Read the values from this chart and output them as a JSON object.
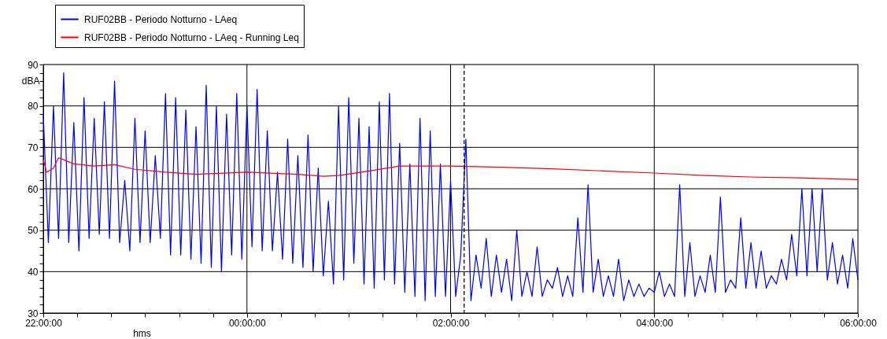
{
  "chart_data": {
    "type": "line",
    "xlabel": "hms",
    "ylabel": "dBA",
    "xlim": [
      "2000-01-01T22:00",
      "2000-01-02T06:00"
    ],
    "xticks": [
      {
        "value": "2000-01-01T22:00",
        "label": "22:00:00"
      },
      {
        "value": "2000-01-01T22:20",
        "label": null
      },
      {
        "value": "2000-01-01T22:40",
        "label": null
      },
      {
        "value": "2000-01-01T23:00",
        "label": null
      },
      {
        "value": "2000-01-01T23:20",
        "label": null
      },
      {
        "value": "2000-01-01T23:40",
        "label": null
      },
      {
        "value": "2000-01-02T00:00",
        "label": "00:00:00"
      },
      {
        "value": "2000-01-02T00:20",
        "label": null
      },
      {
        "value": "2000-01-02T00:40",
        "label": null
      },
      {
        "value": "2000-01-02T01:00",
        "label": null
      },
      {
        "value": "2000-01-02T01:20",
        "label": null
      },
      {
        "value": "2000-01-02T01:40",
        "label": null
      },
      {
        "value": "2000-01-02T02:00",
        "label": "02:00:00"
      },
      {
        "value": "2000-01-02T02:20",
        "label": null
      },
      {
        "value": "2000-01-02T02:40",
        "label": null
      },
      {
        "value": "2000-01-02T03:00",
        "label": null
      },
      {
        "value": "2000-01-02T03:20",
        "label": null
      },
      {
        "value": "2000-01-02T03:40",
        "label": null
      },
      {
        "value": "2000-01-02T04:00",
        "label": "04:00:00"
      },
      {
        "value": "2000-01-02T04:20",
        "label": null
      },
      {
        "value": "2000-01-02T04:40",
        "label": null
      },
      {
        "value": "2000-01-02T05:00",
        "label": null
      },
      {
        "value": "2000-01-02T05:20",
        "label": null
      },
      {
        "value": "2000-01-02T05:40",
        "label": null
      },
      {
        "value": "2000-01-02T06:00",
        "label": "06:00:00"
      }
    ],
    "ylim": [
      30,
      90
    ],
    "yticks": [
      30,
      {
        "value": 32,
        "label": null
      },
      {
        "value": 34,
        "label": null
      },
      {
        "value": 36,
        "label": null
      },
      {
        "value": 38,
        "label": null
      },
      40,
      {
        "value": 42,
        "label": null
      },
      {
        "value": 44,
        "label": null
      },
      {
        "value": 46,
        "label": null
      },
      {
        "value": 48,
        "label": null
      },
      50,
      {
        "value": 52,
        "label": null
      },
      {
        "value": 54,
        "label": null
      },
      {
        "value": 56,
        "label": null
      },
      {
        "value": 58,
        "label": null
      },
      60,
      {
        "value": 62,
        "label": null
      },
      {
        "value": 64,
        "label": null
      },
      {
        "value": 66,
        "label": null
      },
      {
        "value": 68,
        "label": null
      },
      70,
      {
        "value": 72,
        "label": null
      },
      {
        "value": 74,
        "label": null
      },
      {
        "value": 76,
        "label": null
      },
      {
        "value": 78,
        "label": null
      },
      80,
      {
        "value": 82,
        "label": null
      },
      {
        "value": 84,
        "label": null
      },
      {
        "value": 86,
        "label": null
      },
      {
        "value": 88,
        "label": null
      },
      90
    ],
    "grid": true,
    "legend": "top",
    "line_style": "solid",
    "marker": "none",
    "ref_lines": [
      {
        "axis": "x",
        "value": "2000-01-02T02:08",
        "color": "#000000",
        "line_style": "dashed"
      }
    ],
    "series": [
      {
        "name": "RUF02BB - Periodo Notturno - LAeq",
        "color": "#0000ff",
        "x": [
          "2000-01-01T22:00",
          "2000-01-01T22:03",
          "2000-01-01T22:06",
          "2000-01-01T22:09",
          "2000-01-01T22:12",
          "2000-01-01T22:15",
          "2000-01-01T22:18",
          "2000-01-01T22:21",
          "2000-01-01T22:24",
          "2000-01-01T22:27",
          "2000-01-01T22:30",
          "2000-01-01T22:33",
          "2000-01-01T22:36",
          "2000-01-01T22:39",
          "2000-01-01T22:42",
          "2000-01-01T22:45",
          "2000-01-01T22:48",
          "2000-01-01T22:51",
          "2000-01-01T22:54",
          "2000-01-01T22:57",
          "2000-01-01T23:00",
          "2000-01-01T23:03",
          "2000-01-01T23:06",
          "2000-01-01T23:09",
          "2000-01-01T23:12",
          "2000-01-01T23:15",
          "2000-01-01T23:18",
          "2000-01-01T23:21",
          "2000-01-01T23:24",
          "2000-01-01T23:27",
          "2000-01-01T23:30",
          "2000-01-01T23:33",
          "2000-01-01T23:36",
          "2000-01-01T23:39",
          "2000-01-01T23:42",
          "2000-01-01T23:45",
          "2000-01-01T23:48",
          "2000-01-01T23:51",
          "2000-01-01T23:54",
          "2000-01-01T23:57",
          "2000-01-02T00:00",
          "2000-01-02T00:03",
          "2000-01-02T00:06",
          "2000-01-02T00:09",
          "2000-01-02T00:12",
          "2000-01-02T00:15",
          "2000-01-02T00:18",
          "2000-01-02T00:21",
          "2000-01-02T00:24",
          "2000-01-02T00:27",
          "2000-01-02T00:30",
          "2000-01-02T00:33",
          "2000-01-02T00:36",
          "2000-01-02T00:39",
          "2000-01-02T00:42",
          "2000-01-02T00:45",
          "2000-01-02T00:48",
          "2000-01-02T00:51",
          "2000-01-02T00:54",
          "2000-01-02T00:57",
          "2000-01-02T01:00",
          "2000-01-02T01:03",
          "2000-01-02T01:06",
          "2000-01-02T01:09",
          "2000-01-02T01:12",
          "2000-01-02T01:15",
          "2000-01-02T01:18",
          "2000-01-02T01:21",
          "2000-01-02T01:24",
          "2000-01-02T01:27",
          "2000-01-02T01:30",
          "2000-01-02T01:33",
          "2000-01-02T01:36",
          "2000-01-02T01:39",
          "2000-01-02T01:42",
          "2000-01-02T01:45",
          "2000-01-02T01:48",
          "2000-01-02T01:51",
          "2000-01-02T01:54",
          "2000-01-02T01:57",
          "2000-01-02T02:00",
          "2000-01-02T02:03",
          "2000-01-02T02:06",
          "2000-01-02T02:09",
          "2000-01-02T02:12",
          "2000-01-02T02:15",
          "2000-01-02T02:18",
          "2000-01-02T02:21",
          "2000-01-02T02:24",
          "2000-01-02T02:27",
          "2000-01-02T02:30",
          "2000-01-02T02:33",
          "2000-01-02T02:36",
          "2000-01-02T02:39",
          "2000-01-02T02:42",
          "2000-01-02T02:45",
          "2000-01-02T02:48",
          "2000-01-02T02:51",
          "2000-01-02T02:54",
          "2000-01-02T02:57",
          "2000-01-02T03:00",
          "2000-01-02T03:03",
          "2000-01-02T03:06",
          "2000-01-02T03:09",
          "2000-01-02T03:12",
          "2000-01-02T03:15",
          "2000-01-02T03:18",
          "2000-01-02T03:21",
          "2000-01-02T03:24",
          "2000-01-02T03:27",
          "2000-01-02T03:30",
          "2000-01-02T03:33",
          "2000-01-02T03:36",
          "2000-01-02T03:39",
          "2000-01-02T03:42",
          "2000-01-02T03:45",
          "2000-01-02T03:48",
          "2000-01-02T03:51",
          "2000-01-02T03:54",
          "2000-01-02T03:57",
          "2000-01-02T04:00",
          "2000-01-02T04:03",
          "2000-01-02T04:06",
          "2000-01-02T04:09",
          "2000-01-02T04:12",
          "2000-01-02T04:15",
          "2000-01-02T04:18",
          "2000-01-02T04:21",
          "2000-01-02T04:24",
          "2000-01-02T04:27",
          "2000-01-02T04:30",
          "2000-01-02T04:33",
          "2000-01-02T04:36",
          "2000-01-02T04:39",
          "2000-01-02T04:42",
          "2000-01-02T04:45",
          "2000-01-02T04:48",
          "2000-01-02T04:51",
          "2000-01-02T04:54",
          "2000-01-02T04:57",
          "2000-01-02T05:00",
          "2000-01-02T05:03",
          "2000-01-02T05:06",
          "2000-01-02T05:09",
          "2000-01-02T05:12",
          "2000-01-02T05:15",
          "2000-01-02T05:18",
          "2000-01-02T05:21",
          "2000-01-02T05:24",
          "2000-01-02T05:27",
          "2000-01-02T05:30",
          "2000-01-02T05:33",
          "2000-01-02T05:36",
          "2000-01-02T05:39",
          "2000-01-02T05:42",
          "2000-01-02T05:45",
          "2000-01-02T05:48",
          "2000-01-02T05:51",
          "2000-01-02T05:54",
          "2000-01-02T05:57",
          "2000-01-02T06:00"
        ],
        "values": [
          78,
          47,
          80,
          48,
          88,
          47,
          76,
          45,
          82,
          48,
          77,
          49,
          81,
          48,
          86,
          47,
          62,
          45,
          77,
          47,
          74,
          47,
          68,
          48,
          83,
          44,
          82,
          44,
          79,
          43,
          75,
          42,
          85,
          41,
          80,
          40,
          78,
          44,
          83,
          43,
          80,
          46,
          84,
          45,
          74,
          45,
          64,
          43,
          72,
          42,
          68,
          41,
          73,
          40,
          65,
          39,
          57,
          37,
          80,
          38,
          82,
          42,
          77,
          37,
          75,
          36,
          81,
          38,
          83,
          37,
          71,
          35,
          66,
          34,
          77,
          33,
          74,
          34,
          66,
          34,
          62,
          34,
          44,
          72,
          33,
          44,
          36,
          48,
          34,
          44,
          35,
          43,
          33,
          50,
          34,
          40,
          34,
          46,
          34,
          38,
          36,
          41,
          34,
          39,
          34,
          53,
          35,
          61,
          35,
          43,
          34,
          39,
          34,
          43,
          33,
          38,
          34,
          37,
          34,
          36,
          35,
          40,
          34,
          37,
          34,
          61,
          34,
          47,
          34,
          39,
          35,
          44,
          35,
          58,
          35,
          38,
          36,
          53,
          36,
          47,
          36,
          45,
          36,
          39,
          37,
          43,
          38,
          49,
          39,
          60,
          39,
          60,
          40,
          60,
          38,
          47,
          37,
          44,
          36,
          48,
          38
        ]
      },
      {
        "name": "RUF02BB - Periodo Notturno - LAeq - Running Leq",
        "color": "#ff0000",
        "x": [
          "2000-01-01T22:00",
          "2000-01-01T22:02",
          "2000-01-01T22:06",
          "2000-01-01T22:09",
          "2000-01-01T22:18",
          "2000-01-01T22:30",
          "2000-01-01T22:42",
          "2000-01-01T22:54",
          "2000-01-01T23:12",
          "2000-01-01T23:30",
          "2000-01-02T00:00",
          "2000-01-02T00:30",
          "2000-01-02T00:45",
          "2000-01-02T00:54",
          "2000-01-02T01:12",
          "2000-01-02T01:30",
          "2000-01-02T02:00",
          "2000-01-02T02:30",
          "2000-01-02T03:00",
          "2000-01-02T03:30",
          "2000-01-02T04:00",
          "2000-01-02T04:30",
          "2000-01-02T05:00",
          "2000-01-02T05:30",
          "2000-01-02T06:00"
        ],
        "values": [
          67,
          64,
          65,
          67.5,
          66,
          65.5,
          65.8,
          64.7,
          64,
          63.5,
          64,
          63.5,
          63,
          63.2,
          64.3,
          65.5,
          65.5,
          65.2,
          64.8,
          64.3,
          63.8,
          63.2,
          62.8,
          62.6,
          62.2
        ]
      }
    ]
  }
}
